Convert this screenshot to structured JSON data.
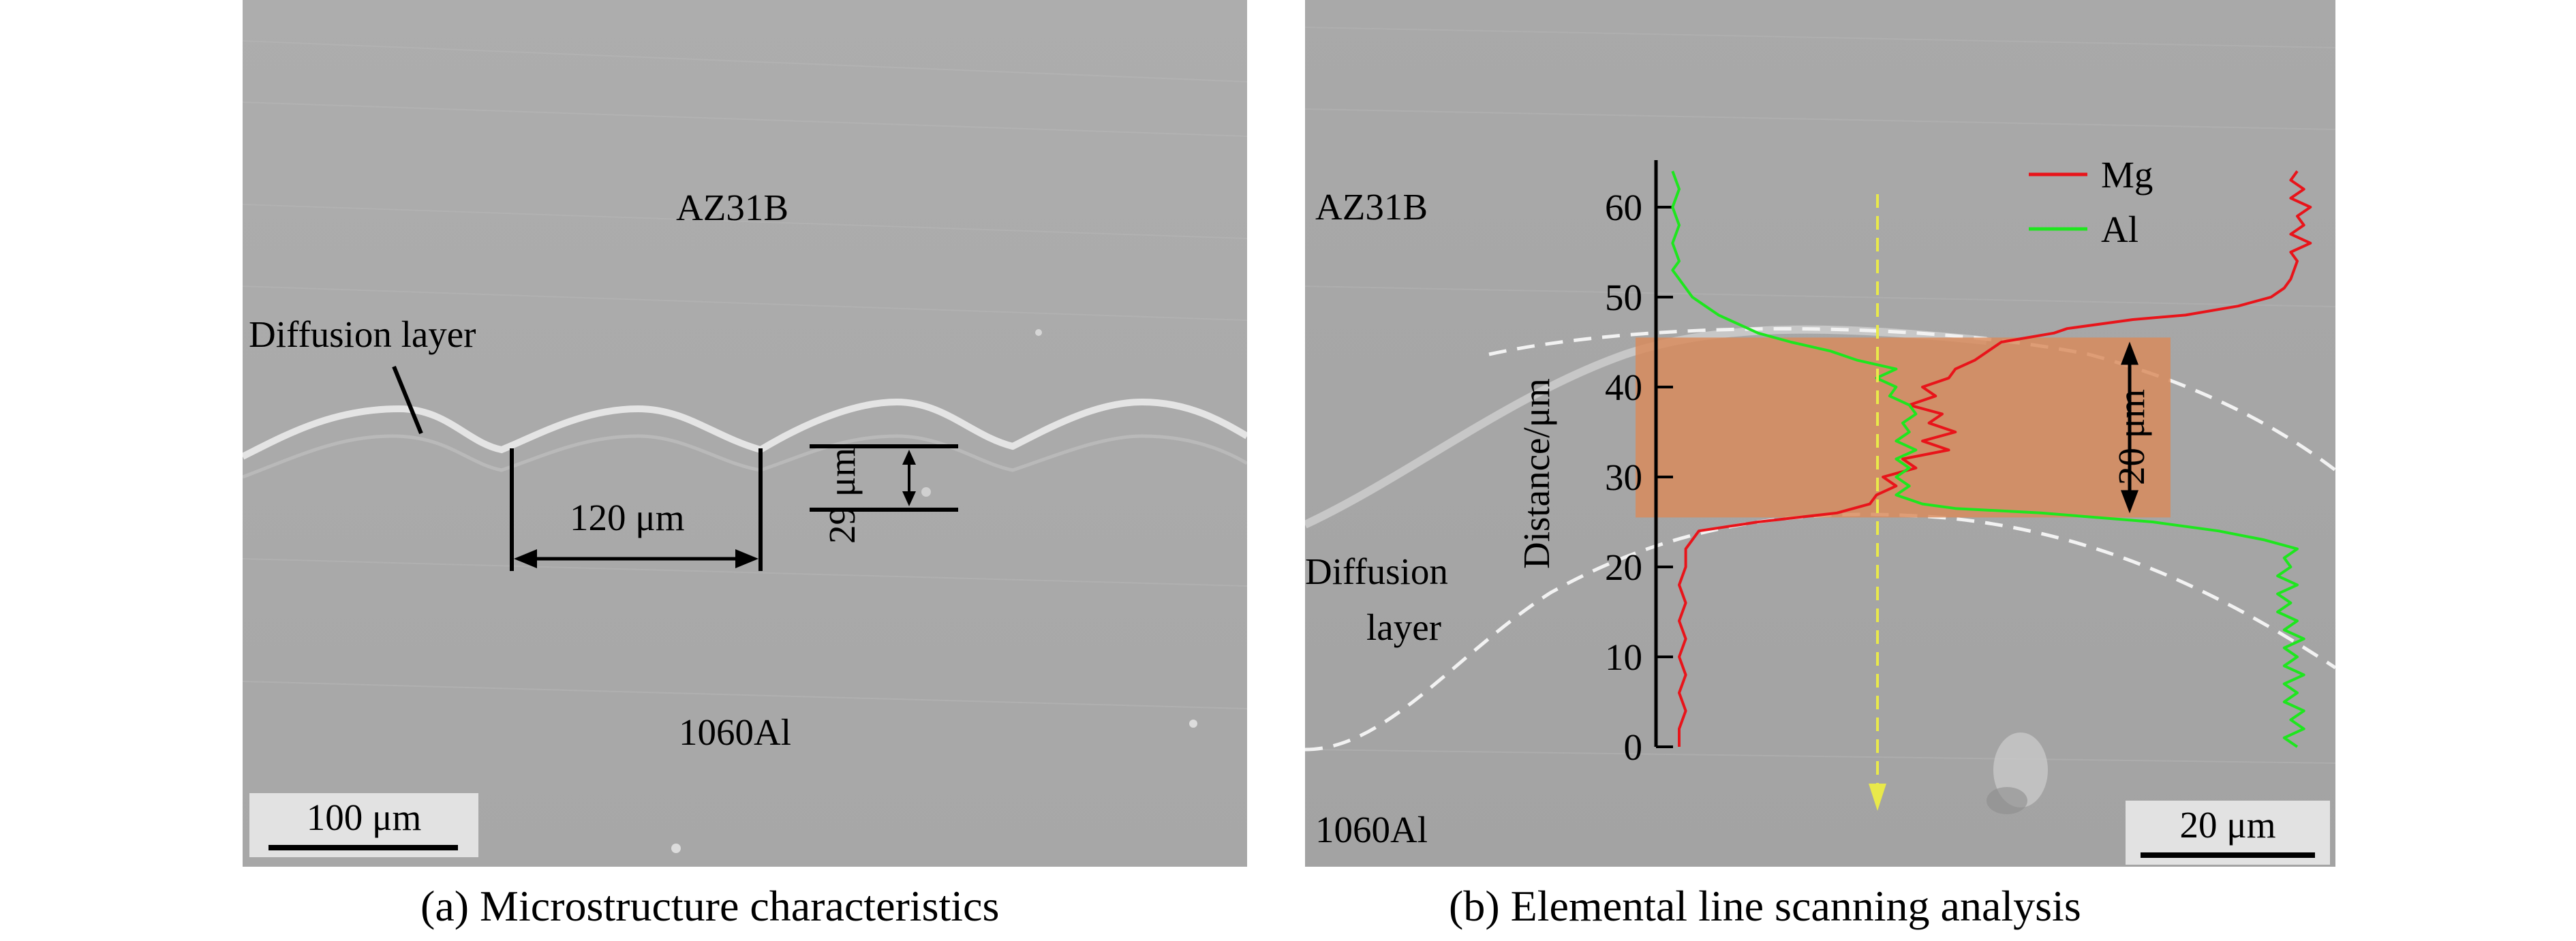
{
  "panel_a": {
    "top_material": "AZ31B",
    "bottom_material": "1060Al",
    "diffusion_label": "Diffusion layer",
    "width_label": "120 μm",
    "height_label": "29 μm",
    "scale_label": "100 μm",
    "caption": "(a) Microstructure characteristics"
  },
  "panel_b": {
    "top_material": "AZ31B",
    "bottom_material": "1060Al",
    "diffusion_label_line1": "Diffusion",
    "diffusion_label_line2": "layer",
    "band_label": "20 μm",
    "scale_label": "20 μm",
    "caption": "(b) Elemental line scanning analysis",
    "colors": {
      "mg": "#e8141a",
      "al": "#1ee61e",
      "band": "#d98a5a",
      "scan_arrow": "#e9e94a"
    }
  },
  "chart_data": {
    "type": "line",
    "ylabel": "Distance/μm",
    "ylim": [
      0,
      65
    ],
    "yticks": [
      0,
      10,
      20,
      30,
      40,
      50,
      60
    ],
    "legend_position": "top-right",
    "series": [
      {
        "name": "Mg",
        "color": "#e8141a",
        "points": [
          [
            0.03,
            0
          ],
          [
            0.03,
            2
          ],
          [
            0.04,
            4
          ],
          [
            0.03,
            6
          ],
          [
            0.04,
            8
          ],
          [
            0.03,
            10
          ],
          [
            0.04,
            12
          ],
          [
            0.03,
            14
          ],
          [
            0.04,
            16
          ],
          [
            0.03,
            18
          ],
          [
            0.04,
            20
          ],
          [
            0.04,
            22
          ],
          [
            0.06,
            24
          ],
          [
            0.15,
            25
          ],
          [
            0.27,
            26
          ],
          [
            0.32,
            27
          ],
          [
            0.33,
            28
          ],
          [
            0.36,
            29
          ],
          [
            0.34,
            30
          ],
          [
            0.39,
            31
          ],
          [
            0.37,
            32
          ],
          [
            0.44,
            33
          ],
          [
            0.4,
            34
          ],
          [
            0.45,
            35
          ],
          [
            0.41,
            36
          ],
          [
            0.43,
            37
          ],
          [
            0.38,
            38
          ],
          [
            0.42,
            39
          ],
          [
            0.4,
            40
          ],
          [
            0.44,
            41
          ],
          [
            0.45,
            42
          ],
          [
            0.48,
            43
          ],
          [
            0.5,
            44
          ],
          [
            0.52,
            45
          ],
          [
            0.6,
            46
          ],
          [
            0.62,
            46.5
          ],
          [
            0.72,
            47.5
          ],
          [
            0.8,
            48
          ],
          [
            0.88,
            49
          ],
          [
            0.93,
            50
          ],
          [
            0.95,
            51
          ],
          [
            0.96,
            52
          ],
          [
            0.97,
            54
          ],
          [
            0.96,
            55
          ],
          [
            0.99,
            56
          ],
          [
            0.96,
            57
          ],
          [
            0.98,
            58
          ],
          [
            0.97,
            59
          ],
          [
            0.99,
            60
          ],
          [
            0.96,
            61
          ],
          [
            0.98,
            62
          ],
          [
            0.96,
            63
          ],
          [
            0.97,
            64
          ]
        ]
      },
      {
        "name": "Al",
        "color": "#1ee61e",
        "points": [
          [
            0.97,
            0
          ],
          [
            0.95,
            1
          ],
          [
            0.98,
            2
          ],
          [
            0.96,
            3
          ],
          [
            0.98,
            4
          ],
          [
            0.95,
            5
          ],
          [
            0.97,
            6
          ],
          [
            0.95,
            7
          ],
          [
            0.98,
            8
          ],
          [
            0.95,
            9
          ],
          [
            0.97,
            10
          ],
          [
            0.95,
            11
          ],
          [
            0.98,
            12
          ],
          [
            0.95,
            13
          ],
          [
            0.97,
            14
          ],
          [
            0.94,
            15
          ],
          [
            0.96,
            16
          ],
          [
            0.94,
            17
          ],
          [
            0.97,
            18
          ],
          [
            0.94,
            19
          ],
          [
            0.96,
            20
          ],
          [
            0.95,
            21
          ],
          [
            0.97,
            22
          ],
          [
            0.92,
            23
          ],
          [
            0.85,
            24
          ],
          [
            0.75,
            25
          ],
          [
            0.58,
            26
          ],
          [
            0.45,
            26.5
          ],
          [
            0.4,
            27
          ],
          [
            0.36,
            28
          ],
          [
            0.38,
            29
          ],
          [
            0.36,
            30
          ],
          [
            0.38,
            31
          ],
          [
            0.36,
            32
          ],
          [
            0.39,
            33
          ],
          [
            0.36,
            34
          ],
          [
            0.38,
            35
          ],
          [
            0.37,
            36
          ],
          [
            0.39,
            37
          ],
          [
            0.38,
            38
          ],
          [
            0.35,
            39
          ],
          [
            0.36,
            40
          ],
          [
            0.33,
            41
          ],
          [
            0.36,
            42
          ],
          [
            0.3,
            43
          ],
          [
            0.26,
            44
          ],
          [
            0.2,
            45
          ],
          [
            0.15,
            46
          ],
          [
            0.12,
            47
          ],
          [
            0.09,
            48
          ],
          [
            0.07,
            49
          ],
          [
            0.05,
            50
          ],
          [
            0.03,
            52
          ],
          [
            0.02,
            53
          ],
          [
            0.03,
            54
          ],
          [
            0.02,
            56
          ],
          [
            0.03,
            58
          ],
          [
            0.02,
            60
          ],
          [
            0.03,
            62
          ],
          [
            0.02,
            64
          ]
        ]
      }
    ],
    "highlight_band": [
      25.5,
      45.5
    ]
  }
}
